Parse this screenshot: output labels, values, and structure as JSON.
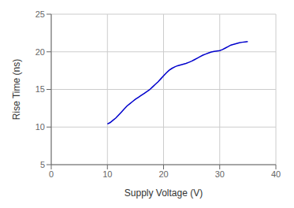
{
  "chart_data": {
    "type": "line",
    "xlabel": "Supply Voltage (V)",
    "ylabel": "Rise Time (ns)",
    "x": [
      10.0,
      10.5,
      11.0,
      11.5,
      12.0,
      12.5,
      13.0,
      13.5,
      14.0,
      14.5,
      15.0,
      15.5,
      16.0,
      16.5,
      17.0,
      17.5,
      18.0,
      18.5,
      19.0,
      19.5,
      20.0,
      20.5,
      21.0,
      21.5,
      22.0,
      22.5,
      23.0,
      23.5,
      24.0,
      24.5,
      25.0,
      25.5,
      26.0,
      26.5,
      27.0,
      27.5,
      28.0,
      28.5,
      29.0,
      29.5,
      30.0,
      30.5,
      31.0,
      31.5,
      32.0,
      32.5,
      33.0,
      33.5,
      34.0,
      34.5,
      35.0
    ],
    "values": [
      10.4,
      10.6,
      10.9,
      11.2,
      11.6,
      12.0,
      12.4,
      12.8,
      13.1,
      13.4,
      13.7,
      13.95,
      14.2,
      14.45,
      14.7,
      14.95,
      15.3,
      15.65,
      16.0,
      16.4,
      16.8,
      17.2,
      17.55,
      17.8,
      18.0,
      18.15,
      18.25,
      18.35,
      18.45,
      18.6,
      18.75,
      18.95,
      19.15,
      19.35,
      19.55,
      19.7,
      19.85,
      19.97,
      20.05,
      20.1,
      20.15,
      20.3,
      20.5,
      20.7,
      20.9,
      21.0,
      21.1,
      21.2,
      21.27,
      21.32,
      21.37
    ],
    "color": "#0000CC",
    "xlim": [
      0,
      40
    ],
    "ylim": [
      5,
      25
    ],
    "xticks": [
      0,
      10,
      20,
      30,
      40
    ],
    "yticks": [
      5,
      10,
      15,
      20,
      25
    ],
    "grid": true
  }
}
